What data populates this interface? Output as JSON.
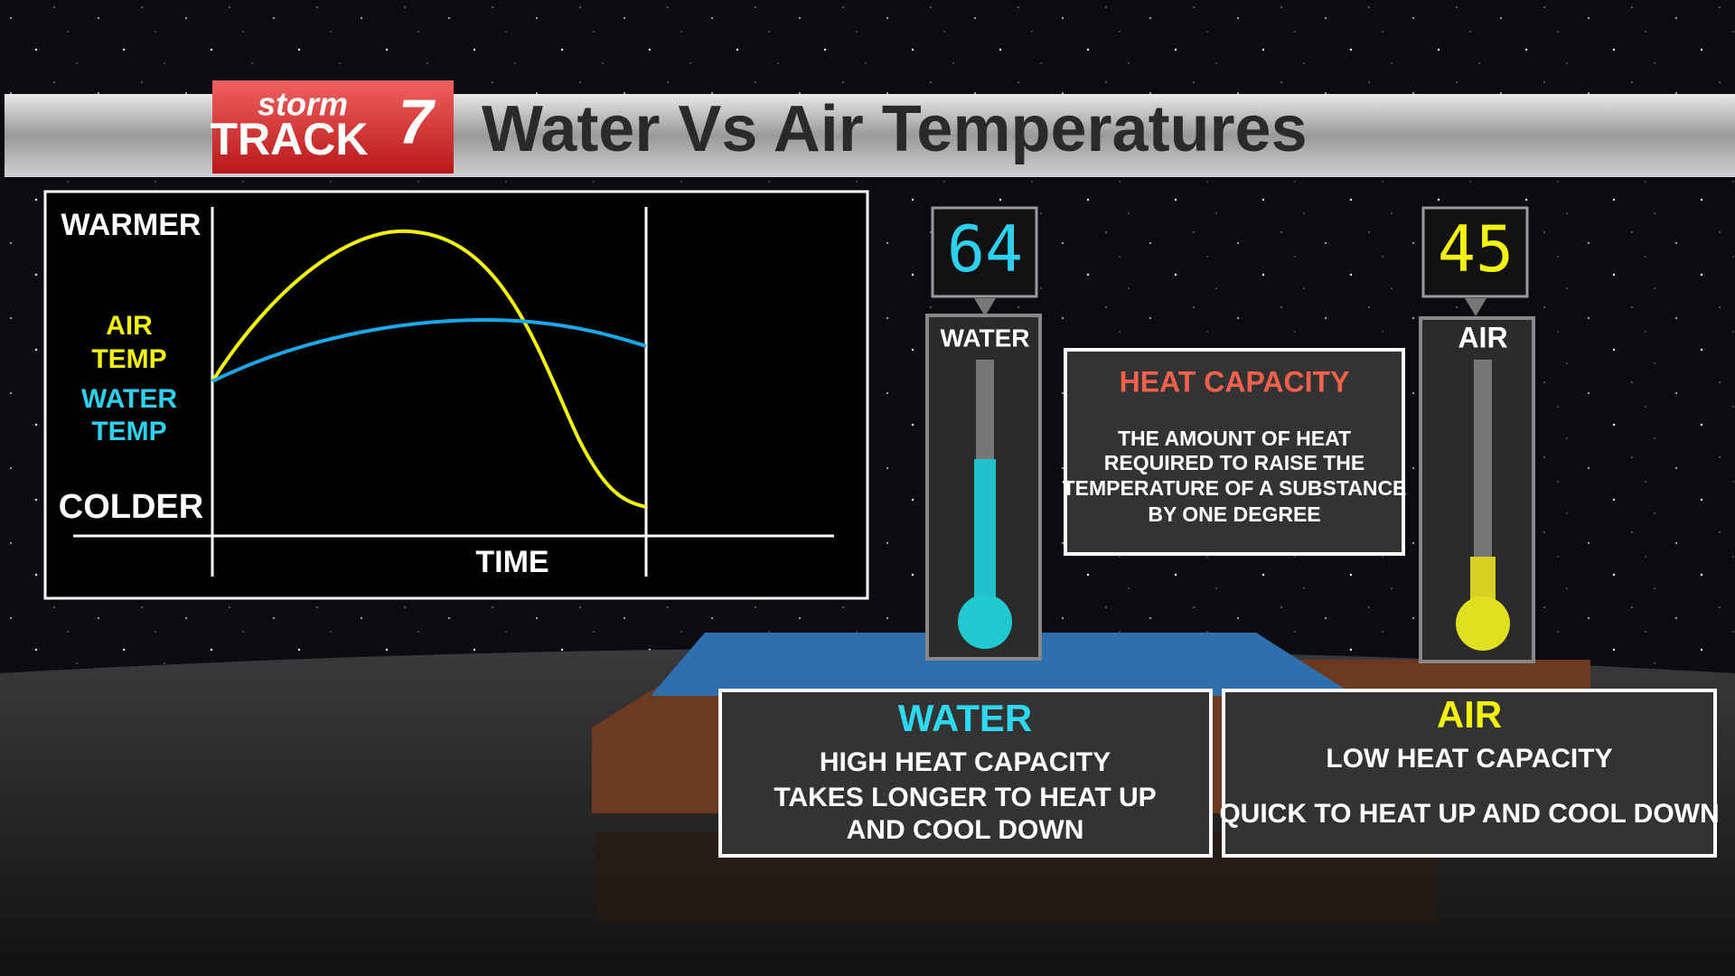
{
  "header": {
    "logo": {
      "line1": "storm",
      "line2": "TRACK",
      "number": "7"
    },
    "title": "Water Vs Air Temperatures"
  },
  "graph": {
    "y_top": "WARMER",
    "air_label": [
      "AIR",
      "TEMP"
    ],
    "water_label": [
      "WATER",
      "TEMP"
    ],
    "y_bottom": "COLDER",
    "x_label": "TIME"
  },
  "thermometers": [
    {
      "reading": "64",
      "label": "WATER"
    },
    {
      "reading": "45",
      "label": "AIR"
    }
  ],
  "heat_capacity": {
    "title": "HEAT CAPACITY",
    "lines": [
      "THE AMOUNT OF HEAT",
      "REQUIRED TO RAISE THE",
      "TEMPERATURE OF A SUBSTANCE",
      "BY ONE DEGREE"
    ]
  },
  "water_box": {
    "title": "WATER",
    "lines": [
      "HIGH HEAT CAPACITY",
      "TAKES LONGER TO HEAT UP",
      "AND COOL DOWN"
    ]
  },
  "air_box": {
    "title": "AIR",
    "lines": [
      "LOW HEAT CAPACITY",
      "QUICK TO HEAT UP AND COOL DOWN"
    ]
  }
}
